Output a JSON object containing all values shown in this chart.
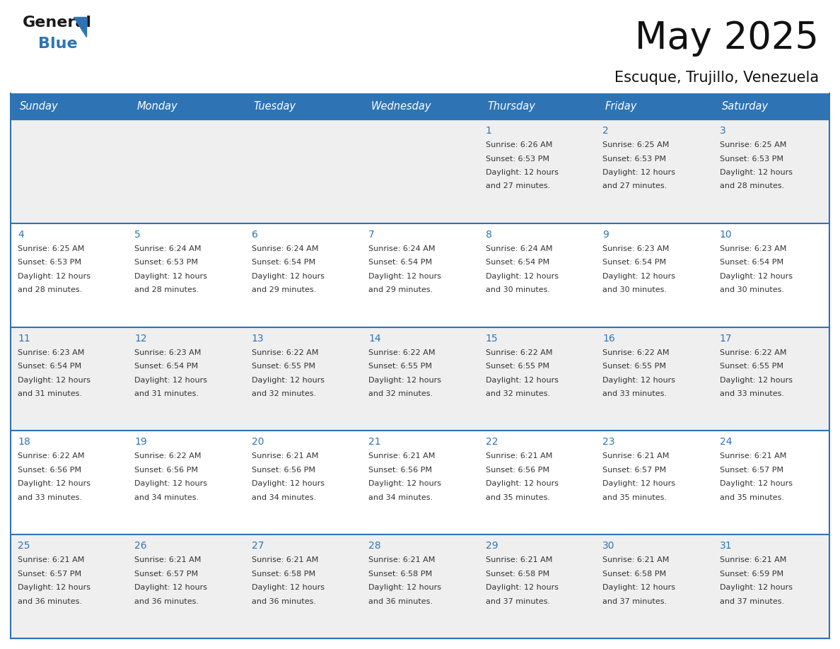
{
  "title": "May 2025",
  "subtitle": "Escuque, Trujillo, Venezuela",
  "days_of_week": [
    "Sunday",
    "Monday",
    "Tuesday",
    "Wednesday",
    "Thursday",
    "Friday",
    "Saturday"
  ],
  "header_bg_color": "#2E74B5",
  "header_text_color": "#FFFFFF",
  "odd_row_bg": "#EFEFEF",
  "even_row_bg": "#FFFFFF",
  "day_num_color": "#2E74B5",
  "text_color": "#333333",
  "border_color": "#2E74B5",
  "calendar_data": [
    [
      null,
      null,
      null,
      null,
      {
        "day": 1,
        "sunrise": "6:26 AM",
        "sunset": "6:53 PM",
        "daylight": "12 hours and 27 minutes."
      },
      {
        "day": 2,
        "sunrise": "6:25 AM",
        "sunset": "6:53 PM",
        "daylight": "12 hours and 27 minutes."
      },
      {
        "day": 3,
        "sunrise": "6:25 AM",
        "sunset": "6:53 PM",
        "daylight": "12 hours and 28 minutes."
      }
    ],
    [
      {
        "day": 4,
        "sunrise": "6:25 AM",
        "sunset": "6:53 PM",
        "daylight": "12 hours and 28 minutes."
      },
      {
        "day": 5,
        "sunrise": "6:24 AM",
        "sunset": "6:53 PM",
        "daylight": "12 hours and 28 minutes."
      },
      {
        "day": 6,
        "sunrise": "6:24 AM",
        "sunset": "6:54 PM",
        "daylight": "12 hours and 29 minutes."
      },
      {
        "day": 7,
        "sunrise": "6:24 AM",
        "sunset": "6:54 PM",
        "daylight": "12 hours and 29 minutes."
      },
      {
        "day": 8,
        "sunrise": "6:24 AM",
        "sunset": "6:54 PM",
        "daylight": "12 hours and 30 minutes."
      },
      {
        "day": 9,
        "sunrise": "6:23 AM",
        "sunset": "6:54 PM",
        "daylight": "12 hours and 30 minutes."
      },
      {
        "day": 10,
        "sunrise": "6:23 AM",
        "sunset": "6:54 PM",
        "daylight": "12 hours and 30 minutes."
      }
    ],
    [
      {
        "day": 11,
        "sunrise": "6:23 AM",
        "sunset": "6:54 PM",
        "daylight": "12 hours and 31 minutes."
      },
      {
        "day": 12,
        "sunrise": "6:23 AM",
        "sunset": "6:54 PM",
        "daylight": "12 hours and 31 minutes."
      },
      {
        "day": 13,
        "sunrise": "6:22 AM",
        "sunset": "6:55 PM",
        "daylight": "12 hours and 32 minutes."
      },
      {
        "day": 14,
        "sunrise": "6:22 AM",
        "sunset": "6:55 PM",
        "daylight": "12 hours and 32 minutes."
      },
      {
        "day": 15,
        "sunrise": "6:22 AM",
        "sunset": "6:55 PM",
        "daylight": "12 hours and 32 minutes."
      },
      {
        "day": 16,
        "sunrise": "6:22 AM",
        "sunset": "6:55 PM",
        "daylight": "12 hours and 33 minutes."
      },
      {
        "day": 17,
        "sunrise": "6:22 AM",
        "sunset": "6:55 PM",
        "daylight": "12 hours and 33 minutes."
      }
    ],
    [
      {
        "day": 18,
        "sunrise": "6:22 AM",
        "sunset": "6:56 PM",
        "daylight": "12 hours and 33 minutes."
      },
      {
        "day": 19,
        "sunrise": "6:22 AM",
        "sunset": "6:56 PM",
        "daylight": "12 hours and 34 minutes."
      },
      {
        "day": 20,
        "sunrise": "6:21 AM",
        "sunset": "6:56 PM",
        "daylight": "12 hours and 34 minutes."
      },
      {
        "day": 21,
        "sunrise": "6:21 AM",
        "sunset": "6:56 PM",
        "daylight": "12 hours and 34 minutes."
      },
      {
        "day": 22,
        "sunrise": "6:21 AM",
        "sunset": "6:56 PM",
        "daylight": "12 hours and 35 minutes."
      },
      {
        "day": 23,
        "sunrise": "6:21 AM",
        "sunset": "6:57 PM",
        "daylight": "12 hours and 35 minutes."
      },
      {
        "day": 24,
        "sunrise": "6:21 AM",
        "sunset": "6:57 PM",
        "daylight": "12 hours and 35 minutes."
      }
    ],
    [
      {
        "day": 25,
        "sunrise": "6:21 AM",
        "sunset": "6:57 PM",
        "daylight": "12 hours and 36 minutes."
      },
      {
        "day": 26,
        "sunrise": "6:21 AM",
        "sunset": "6:57 PM",
        "daylight": "12 hours and 36 minutes."
      },
      {
        "day": 27,
        "sunrise": "6:21 AM",
        "sunset": "6:58 PM",
        "daylight": "12 hours and 36 minutes."
      },
      {
        "day": 28,
        "sunrise": "6:21 AM",
        "sunset": "6:58 PM",
        "daylight": "12 hours and 36 minutes."
      },
      {
        "day": 29,
        "sunrise": "6:21 AM",
        "sunset": "6:58 PM",
        "daylight": "12 hours and 37 minutes."
      },
      {
        "day": 30,
        "sunrise": "6:21 AM",
        "sunset": "6:58 PM",
        "daylight": "12 hours and 37 minutes."
      },
      {
        "day": 31,
        "sunrise": "6:21 AM",
        "sunset": "6:59 PM",
        "daylight": "12 hours and 37 minutes."
      }
    ]
  ],
  "logo_general_color": "#1a1a1a",
  "logo_blue_color": "#2E74B5",
  "logo_triangle_color": "#2E74B5"
}
